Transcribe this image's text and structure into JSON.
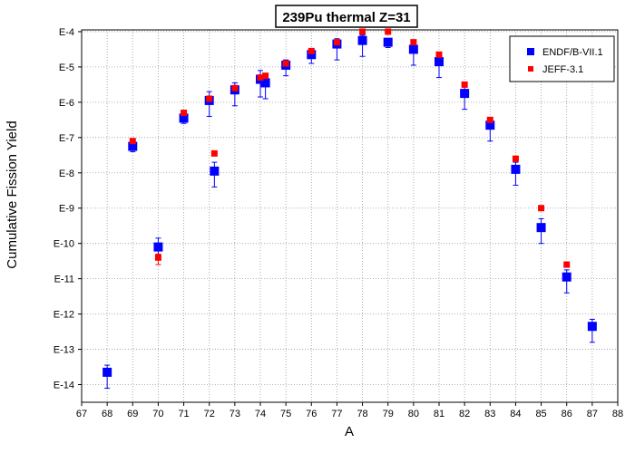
{
  "chart_data": {
    "type": "scatter",
    "title": "239Pu thermal Z=31",
    "xlabel": "A",
    "ylabel": "Cumulative Fission Yield",
    "xlim": [
      67,
      88
    ],
    "ylim_exponent": [
      -14.5,
      -3.95
    ],
    "y_scale": "log",
    "grid": true,
    "legend_position": "top-right",
    "x_ticks": [
      "67",
      "68",
      "69",
      "70",
      "71",
      "72",
      "73",
      "74",
      "75",
      "76",
      "77",
      "78",
      "79",
      "80",
      "81",
      "82",
      "83",
      "84",
      "85",
      "86",
      "87",
      "88"
    ],
    "y_tick_labels": [
      "E-4",
      "E-5",
      "E-6",
      "E-7",
      "E-8",
      "E-9",
      "E-10",
      "E-11",
      "E-12",
      "E-13",
      "E-14"
    ],
    "y_tick_exponents": [
      -4,
      -5,
      -6,
      -7,
      -8,
      -9,
      -10,
      -11,
      -12,
      -13,
      -14
    ],
    "series": [
      {
        "name": "ENDF/B-VII.1",
        "color": "#0000ff",
        "marker": "square-large",
        "points": [
          {
            "x": 68,
            "log_y": -13.65,
            "err_low": 0.45,
            "err_high": 0.2
          },
          {
            "x": 69,
            "log_y": -7.25,
            "err_low": 0.15,
            "err_high": 0.1
          },
          {
            "x": 70,
            "log_y": -10.1,
            "err_low": 0.25,
            "err_high": 0.25
          },
          {
            "x": 71,
            "log_y": -6.45,
            "err_low": 0.15,
            "err_high": 0.1
          },
          {
            "x": 72.2,
            "log_y": -7.95,
            "err_low": 0.45,
            "err_high": 0.25
          },
          {
            "x": 73,
            "log_y": -5.65,
            "err_low": 0.45,
            "err_high": 0.2
          },
          {
            "x": 72,
            "log_y": -5.95,
            "err_low": 0.45,
            "err_high": 0.25
          },
          {
            "x": 74,
            "log_y": -5.35,
            "err_low": 0.5,
            "err_high": 0.25
          },
          {
            "x": 74.2,
            "log_y": -5.45,
            "err_low": 0.45,
            "err_high": 0.25
          },
          {
            "x": 75,
            "log_y": -4.95,
            "err_low": 0.3,
            "err_high": 0.15
          },
          {
            "x": 76,
            "log_y": -4.65,
            "err_low": 0.25,
            "err_high": 0.15
          },
          {
            "x": 77,
            "log_y": -4.35,
            "err_low": 0.45,
            "err_high": 0.15
          },
          {
            "x": 78,
            "log_y": -4.25,
            "err_low": 0.45,
            "err_high": 0.15
          },
          {
            "x": 79,
            "log_y": -4.3,
            "err_low": 0.15,
            "err_high": 0.1
          },
          {
            "x": 80,
            "log_y": -4.5,
            "err_low": 0.45,
            "err_high": 0.15
          },
          {
            "x": 81,
            "log_y": -4.85,
            "err_low": 0.45,
            "err_high": 0.15
          },
          {
            "x": 82,
            "log_y": -5.75,
            "err_low": 0.45,
            "err_high": 0.25
          },
          {
            "x": 83,
            "log_y": -6.65,
            "err_low": 0.45,
            "err_high": 0.2
          },
          {
            "x": 84,
            "log_y": -7.9,
            "err_low": 0.45,
            "err_high": 0.2
          },
          {
            "x": 85,
            "log_y": -9.55,
            "err_low": 0.45,
            "err_high": 0.25
          },
          {
            "x": 86,
            "log_y": -10.95,
            "err_low": 0.45,
            "err_high": 0.2
          },
          {
            "x": 87,
            "log_y": -12.35,
            "err_low": 0.45,
            "err_high": 0.2
          }
        ]
      },
      {
        "name": "JEFF-3.1",
        "color": "#ff0000",
        "marker": "square-small",
        "points": [
          {
            "x": 69,
            "log_y": -7.1
          },
          {
            "x": 70,
            "log_y": -10.4,
            "err_low": 0.2,
            "err_high": 0.1
          },
          {
            "x": 71,
            "log_y": -6.3
          },
          {
            "x": 72,
            "log_y": -5.9
          },
          {
            "x": 72.2,
            "log_y": -7.45
          },
          {
            "x": 73,
            "log_y": -5.6
          },
          {
            "x": 74,
            "log_y": -5.3
          },
          {
            "x": 74.2,
            "log_y": -5.25
          },
          {
            "x": 75,
            "log_y": -4.9
          },
          {
            "x": 76,
            "log_y": -4.55
          },
          {
            "x": 77,
            "log_y": -4.3
          },
          {
            "x": 78,
            "log_y": -4.0
          },
          {
            "x": 79,
            "log_y": -4.0
          },
          {
            "x": 80,
            "log_y": -4.3
          },
          {
            "x": 81,
            "log_y": -4.65
          },
          {
            "x": 82,
            "log_y": -5.5
          },
          {
            "x": 83,
            "log_y": -6.5
          },
          {
            "x": 84,
            "log_y": -7.6
          },
          {
            "x": 85,
            "log_y": -9.0
          },
          {
            "x": 86,
            "log_y": -10.6
          }
        ]
      }
    ]
  }
}
